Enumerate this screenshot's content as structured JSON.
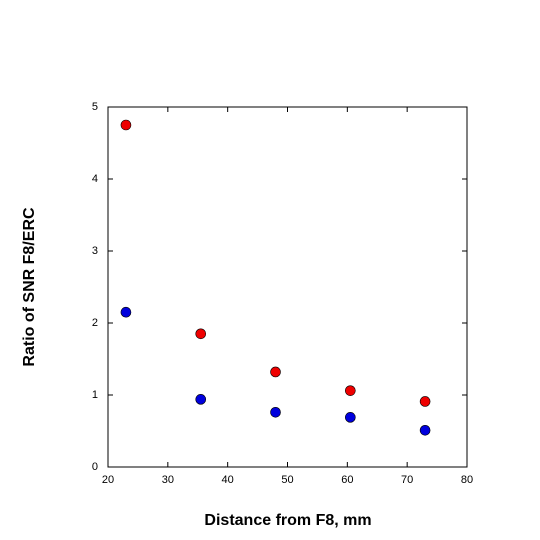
{
  "chart_data": {
    "type": "scatter",
    "xlabel": "Distance from F8, mm",
    "ylabel": "Ratio of SNR  F8/ERC",
    "x": [
      23,
      35.5,
      48,
      60.5,
      73
    ],
    "series": [
      {
        "color": "#ee0000",
        "values": [
          4.75,
          1.85,
          1.32,
          1.06,
          0.91
        ]
      },
      {
        "color": "#0000dd",
        "values": [
          2.15,
          0.94,
          0.76,
          0.69,
          0.51
        ]
      }
    ],
    "xlim": [
      20,
      80
    ],
    "xticks": [
      20,
      30,
      40,
      50,
      60,
      70,
      80
    ],
    "ylim": [
      0,
      5
    ],
    "yticks": [
      0,
      1,
      2,
      3,
      4,
      5
    ]
  }
}
